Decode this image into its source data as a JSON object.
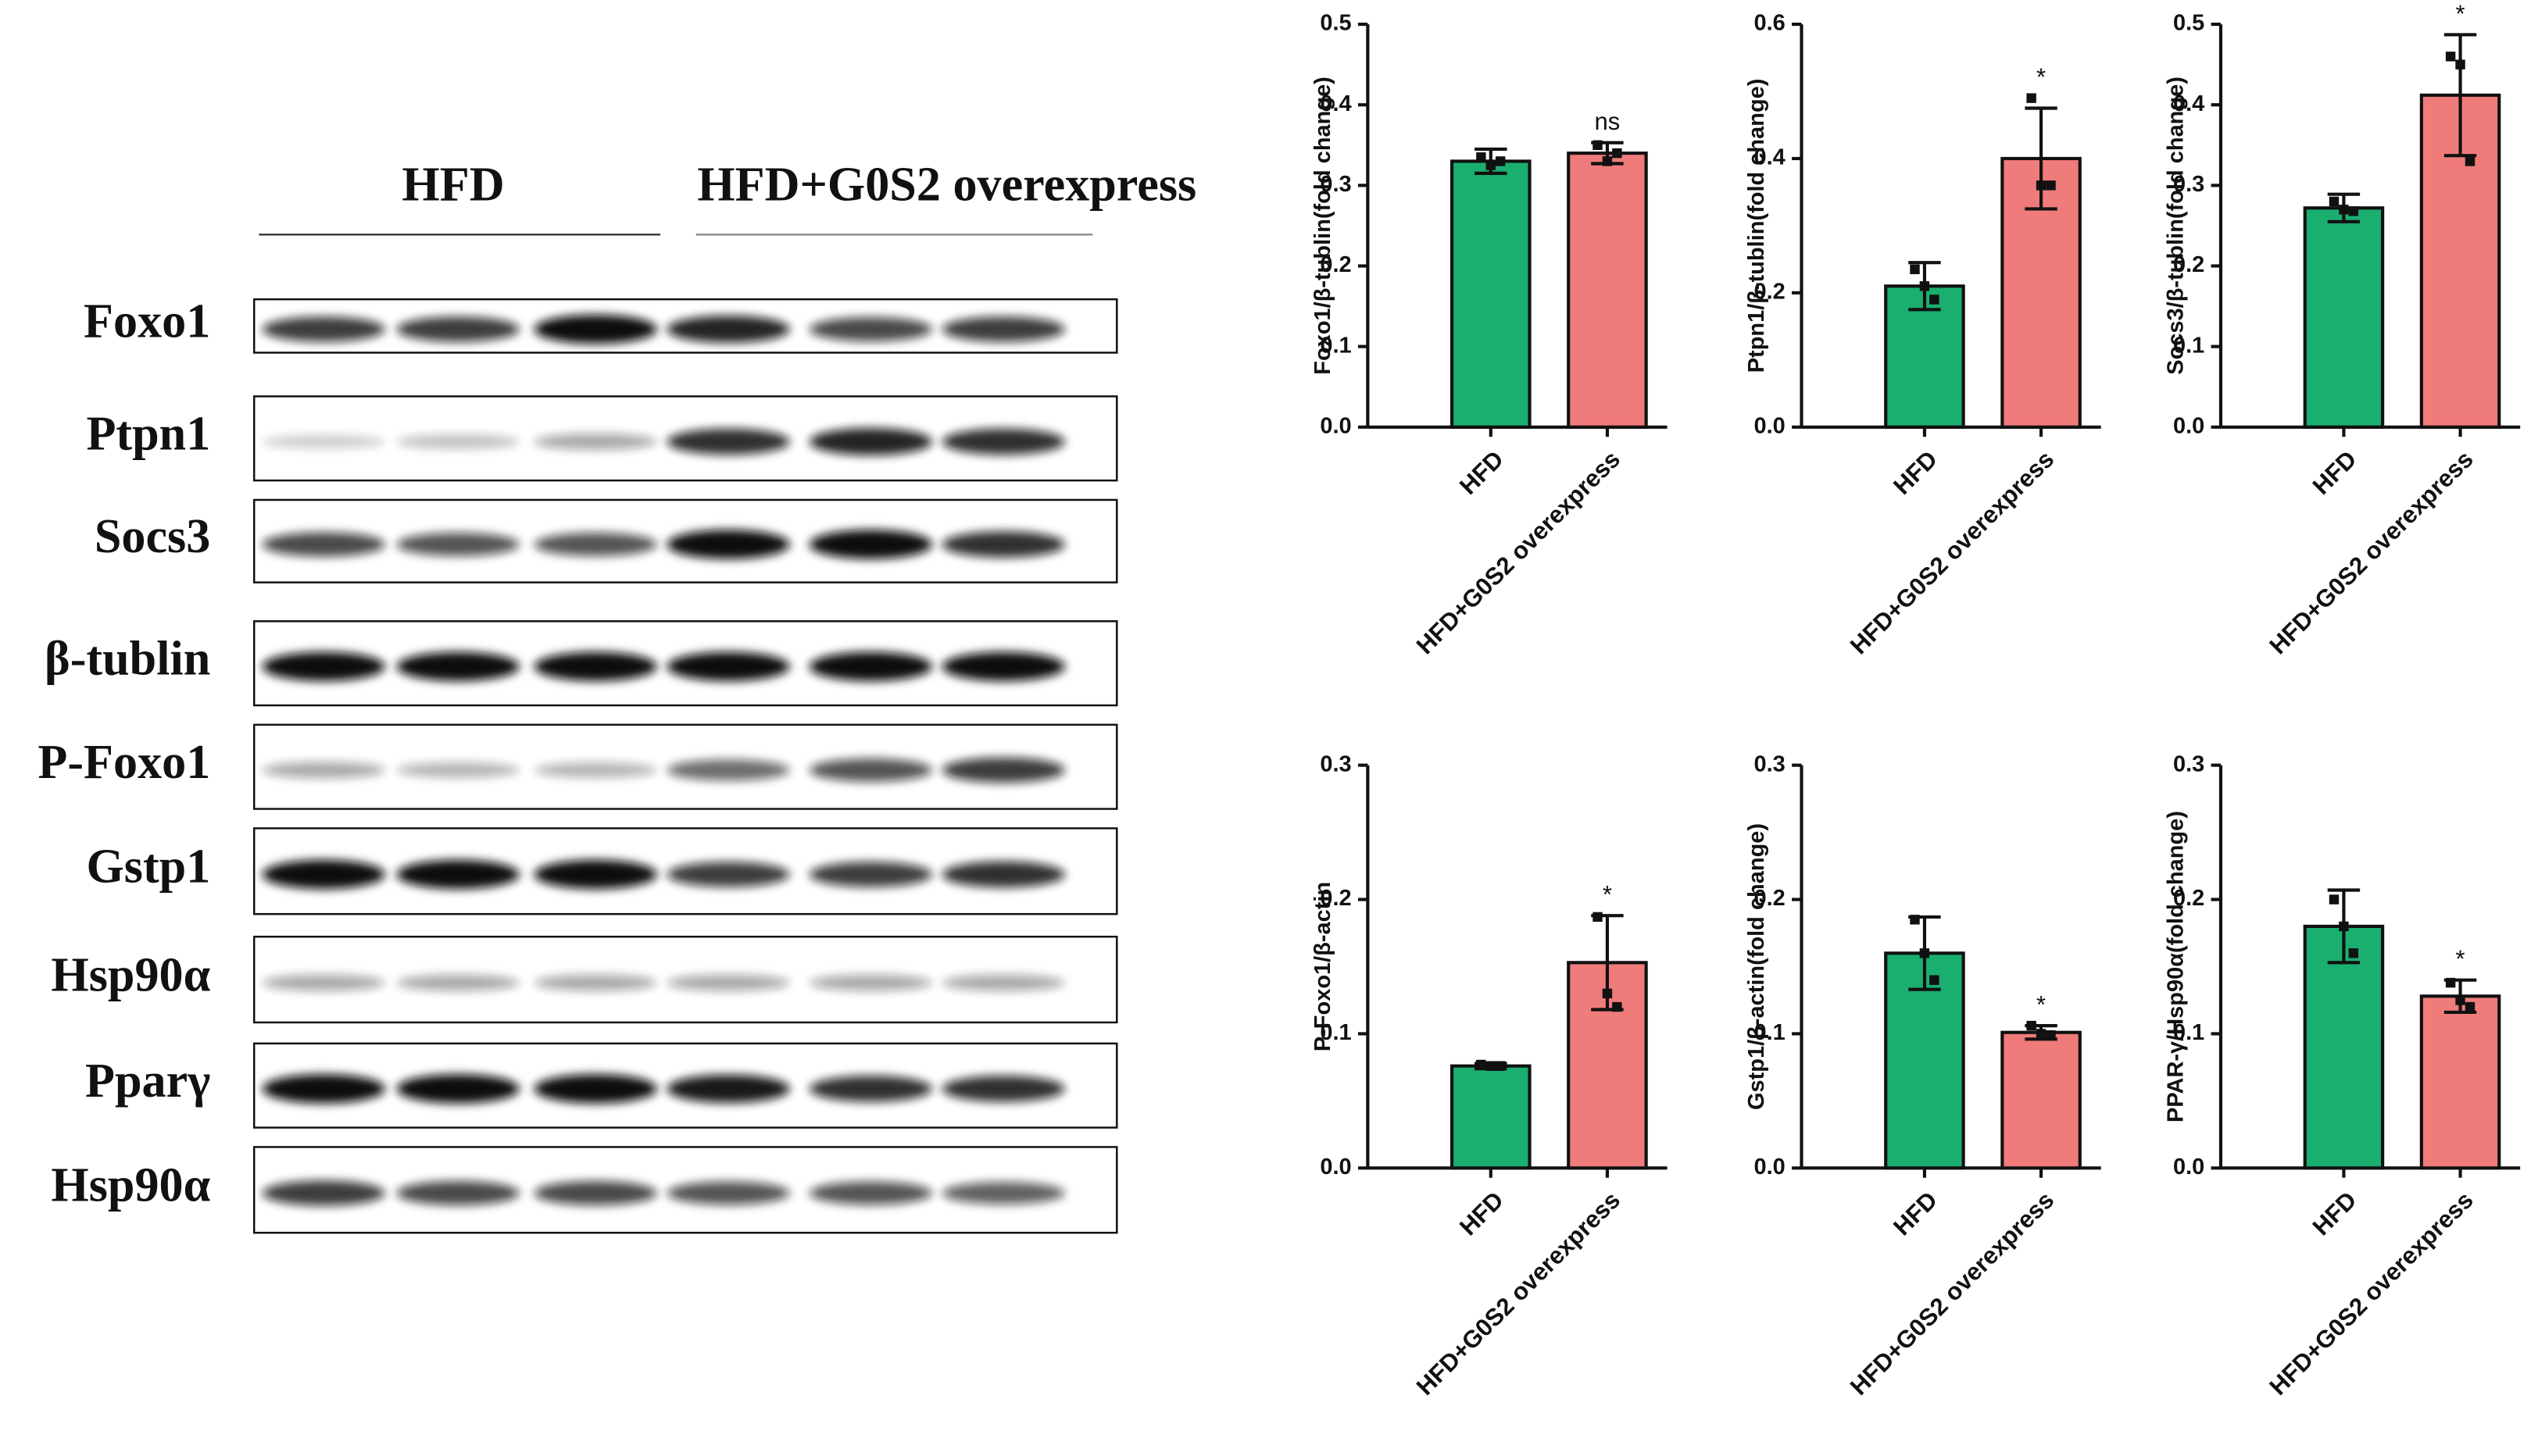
{
  "blot": {
    "group_labels": [
      "HFD",
      "HFD+G0S2 overexpress"
    ],
    "rows": [
      "Foxo1",
      "Ptpn1",
      "Socs3",
      "β-tublin",
      "P-Foxo1",
      "Gstp1",
      "Hsp90α",
      "Pparγ",
      "Hsp90α"
    ]
  },
  "chart_data": [
    {
      "type": "bar",
      "y_label": "Foxo1/β-tublin(fold change)",
      "categories": [
        "HFD",
        "HFD+G0S2 overexpress"
      ],
      "colors": [
        "#1aae6f",
        "#f07b7b"
      ],
      "values": [
        0.33,
        0.34
      ],
      "errors": [
        0.015,
        0.013
      ],
      "points": [
        [
          0.335,
          0.325,
          0.33
        ],
        [
          0.35,
          0.33,
          0.34
        ]
      ],
      "annotation": "ns",
      "ylim": [
        0,
        0.5
      ],
      "yticks": [
        {
          "value": 0,
          "label": "0.0"
        },
        0.1,
        0.2,
        0.3,
        0.4,
        0.5
      ]
    },
    {
      "type": "bar",
      "y_label": "Ptpn1/β-tublin(fold change)",
      "categories": [
        "HFD",
        "HFD+G0S2 overexpress"
      ],
      "colors": [
        "#1aae6f",
        "#f07b7b"
      ],
      "values": [
        0.21,
        0.4
      ],
      "errors": [
        0.035,
        0.075
      ],
      "points": [
        [
          0.235,
          0.21,
          0.19
        ],
        [
          0.49,
          0.36,
          0.36
        ]
      ],
      "annotation": "*",
      "ylim": [
        0,
        0.6
      ],
      "yticks": [
        {
          "value": 0,
          "label": "0.0"
        },
        0.2,
        0.4,
        0.6
      ]
    },
    {
      "type": "bar",
      "y_label": "Socs3/β-tublin(fold change)",
      "categories": [
        "HFD",
        "HFD+G0S2 overexpress"
      ],
      "colors": [
        "#1aae6f",
        "#f07b7b"
      ],
      "values": [
        0.272,
        0.412
      ],
      "errors": [
        0.017,
        0.075
      ],
      "points": [
        [
          0.28,
          0.27,
          0.268
        ],
        [
          0.46,
          0.45,
          0.33
        ]
      ],
      "annotation": "*",
      "ylim": [
        0,
        0.5
      ],
      "yticks": [
        {
          "value": 0,
          "label": "0.0"
        },
        0.1,
        0.2,
        0.3,
        0.4,
        0.5
      ]
    },
    {
      "type": "bar",
      "y_label": "P-Foxo1/β-actin",
      "categories": [
        "HFD",
        "HFD+G0S2 overexpress"
      ],
      "colors": [
        "#1aae6f",
        "#f07b7b"
      ],
      "values": [
        0.076,
        0.153
      ],
      "errors": [
        0.002,
        0.035
      ],
      "points": [
        [
          0.077,
          0.076,
          0.076
        ],
        [
          0.187,
          0.13,
          0.12
        ]
      ],
      "annotation": "*",
      "ylim": [
        0,
        0.3
      ],
      "yticks": [
        {
          "value": 0,
          "label": "0.0"
        },
        0.1,
        0.2,
        0.3
      ]
    },
    {
      "type": "bar",
      "y_label": "Gstp1/β-actin(fold change)",
      "categories": [
        "HFD",
        "HFD+G0S2 overexpress"
      ],
      "colors": [
        "#1aae6f",
        "#f07b7b"
      ],
      "values": [
        0.16,
        0.101
      ],
      "errors": [
        0.027,
        0.005
      ],
      "points": [
        [
          0.185,
          0.16,
          0.14
        ],
        [
          0.106,
          0.1,
          0.099
        ]
      ],
      "annotation": "*",
      "ylim": [
        0,
        0.3
      ],
      "yticks": [
        {
          "value": 0,
          "label": "0.0"
        },
        0.1,
        0.2,
        0.3
      ]
    },
    {
      "type": "bar",
      "y_label": "PPAR-γ/Hsp90α(fold change)",
      "categories": [
        "HFD",
        "HFD+G0S2 overexpress"
      ],
      "colors": [
        "#1aae6f",
        "#f07b7b"
      ],
      "values": [
        0.18,
        0.128
      ],
      "errors": [
        0.027,
        0.012
      ],
      "points": [
        [
          0.2,
          0.18,
          0.16
        ],
        [
          0.138,
          0.125,
          0.12
        ]
      ],
      "annotation": "*",
      "ylim": [
        0,
        0.3
      ],
      "yticks": [
        {
          "value": 0,
          "label": "0.0"
        },
        0.1,
        0.2,
        0.3
      ]
    }
  ]
}
